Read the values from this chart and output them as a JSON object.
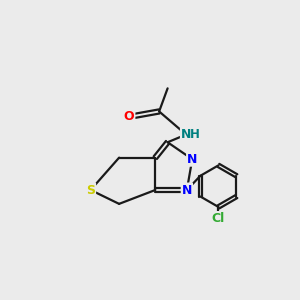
{
  "background_color": "#ebebeb",
  "bond_color": "#1a1a1a",
  "N_color": "#0000ff",
  "O_color": "#ff0000",
  "S_color": "#cccc00",
  "Cl_color": "#33aa33",
  "NH_color": "#008080",
  "figsize": [
    3.0,
    3.0
  ],
  "dpi": 100,
  "xlim": [
    0,
    10
  ],
  "ylim": [
    0,
    10
  ]
}
